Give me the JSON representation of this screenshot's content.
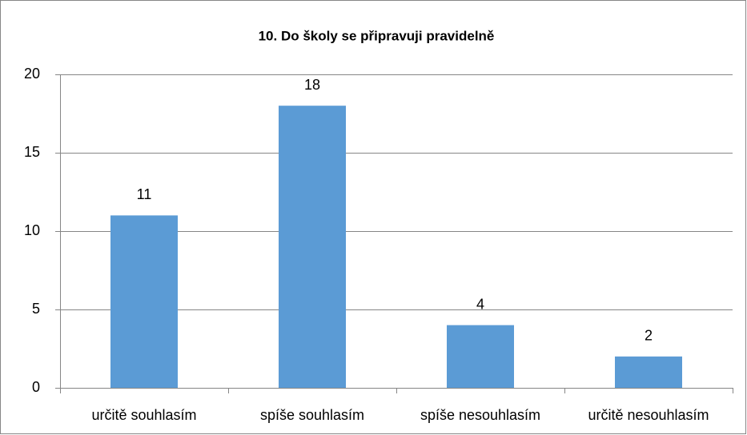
{
  "chart_data": {
    "type": "bar",
    "title": "10. Do školy se připravuji pravidelně",
    "categories": [
      "určitě souhlasím",
      "spíše souhlasím",
      "spíše nesouhlasím",
      "určitě nesouhlasím"
    ],
    "values": [
      11,
      18,
      4,
      2
    ],
    "color": "#5b9bd5",
    "ylim": [
      0,
      20
    ],
    "yticks": [
      0,
      5,
      10,
      15,
      20
    ],
    "grid": true
  }
}
